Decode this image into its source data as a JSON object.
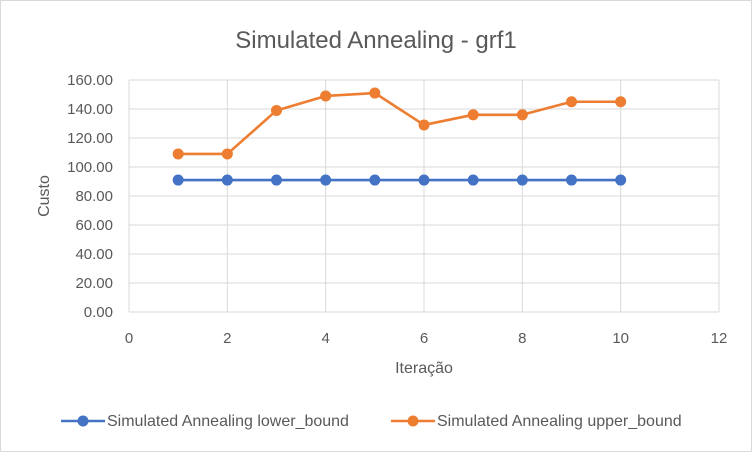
{
  "chart_data": {
    "type": "scatter",
    "title": "Simulated Annealing - grf1",
    "xlabel": "Iteração",
    "ylabel": "Custo",
    "xlim": [
      0,
      12
    ],
    "xticks": [
      0,
      2,
      4,
      6,
      8,
      10,
      12
    ],
    "ylim": [
      0,
      160
    ],
    "yticks": [
      "0.00",
      "20.00",
      "40.00",
      "60.00",
      "80.00",
      "100.00",
      "120.00",
      "140.00",
      "160.00"
    ],
    "grid": "both",
    "legend_position": "bottom",
    "x": [
      1,
      2,
      3,
      4,
      5,
      6,
      7,
      8,
      9,
      10
    ],
    "series": [
      {
        "name": "Simulated Annealing lower_bound",
        "color": "#4472c4",
        "values": [
          91,
          91,
          91,
          91,
          91,
          91,
          91,
          91,
          91,
          91
        ]
      },
      {
        "name": "Simulated Annealing upper_bound",
        "color": "#ed7d31",
        "values": [
          109,
          109,
          139,
          149,
          151,
          129,
          136,
          136,
          145,
          145
        ]
      }
    ]
  }
}
